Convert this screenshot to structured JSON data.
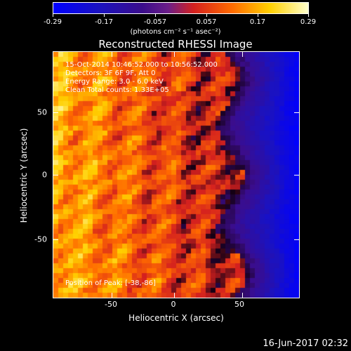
{
  "colorbar": {
    "ticks": [
      "-0.29",
      "-0.17",
      "-0.057",
      "0.057",
      "0.17",
      "0.29"
    ],
    "units": "(photons cm⁻² s⁻¹ asec⁻²)"
  },
  "title": "Reconstructed RHESSI Image",
  "axes": {
    "xlabel": "Heliocentric X (arcsec)",
    "ylabel": "Heliocentric Y (arcsec)",
    "xticks": [
      "-50",
      "0",
      "50"
    ],
    "yticks": [
      "50",
      "0",
      "-50"
    ]
  },
  "overlay": {
    "time_range": "15-Oct-2014 10:46:52.000 to 10:56:52.000",
    "detectors": "Detectors: 3F 6F 9F, Att 0",
    "energy": "Energy Range: 3.0 - 6.0 keV",
    "clean": "Clean     Total counts: 1.33E+05",
    "position": "Position of Peak: [-38,-86]"
  },
  "timestamp": "16-Jun-2017 02:32",
  "colors": {
    "background": "#000000",
    "foreground": "#ffffff"
  }
}
